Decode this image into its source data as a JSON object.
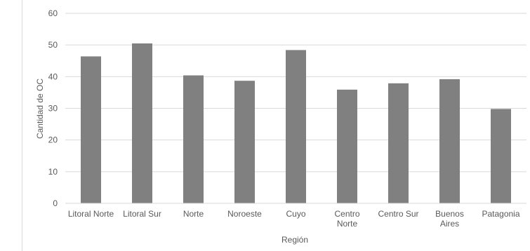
{
  "chart_data": {
    "type": "bar",
    "title": "",
    "xlabel": "Región",
    "ylabel": "Cantidad de OC",
    "categories": [
      [
        "Litoral Norte"
      ],
      [
        "Litoral Sur"
      ],
      [
        "Norte"
      ],
      [
        "Noroeste"
      ],
      [
        "Cuyo"
      ],
      [
        "Centro",
        "Norte"
      ],
      [
        "Centro Sur"
      ],
      [
        "Buenos",
        "Aires"
      ],
      [
        "Patagonia"
      ]
    ],
    "values": [
      46.4,
      50.5,
      40.4,
      38.7,
      48.4,
      35.9,
      37.9,
      39.2,
      29.8
    ],
    "ylim": [
      0,
      60
    ],
    "yticks": [
      0,
      10,
      20,
      30,
      40,
      50,
      60
    ],
    "grid": true,
    "legend": "none",
    "colors": {
      "bar": "#808080",
      "grid": "#d9d9d9",
      "text": "#595959"
    }
  }
}
